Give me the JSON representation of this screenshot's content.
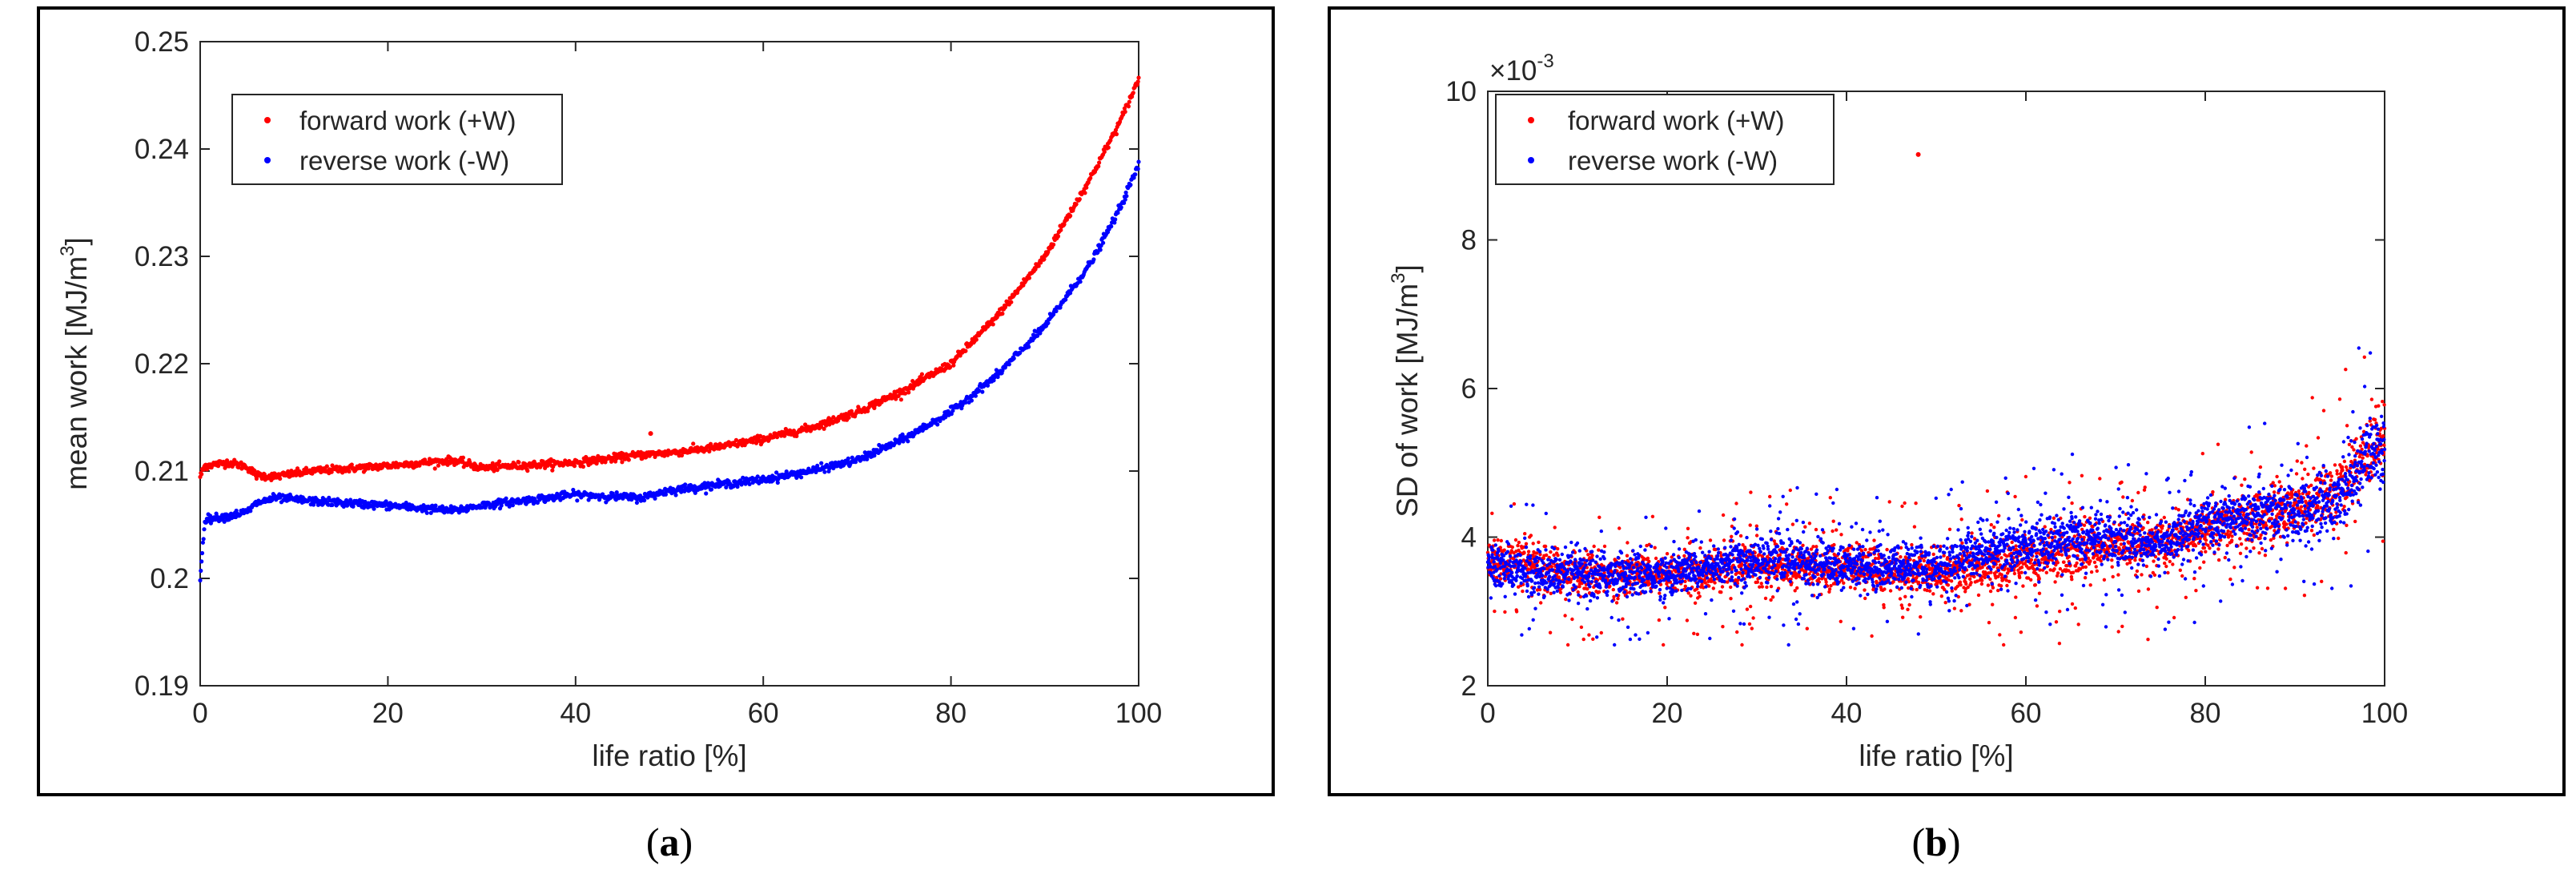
{
  "chart_data": [
    {
      "type": "scatter",
      "panel_label": "a",
      "xlabel": "life ratio [%]",
      "ylabel": "mean work [MJ/m",
      "ylabel_sup": "3",
      "ylabel_end": "]",
      "xlim": [
        0,
        100
      ],
      "ylim": [
        0.19,
        0.25
      ],
      "xticks": [
        0,
        20,
        40,
        60,
        80,
        100
      ],
      "yticks": [
        0.19,
        0.2,
        0.21,
        0.22,
        0.23,
        0.24,
        0.25
      ],
      "ytick_labels": [
        "0.19",
        "0.2",
        "0.21",
        "0.22",
        "0.23",
        "0.24",
        "0.25"
      ],
      "legend": {
        "placement": "top-left",
        "entries": [
          "forward work (+W)",
          "reverse work (-W)"
        ]
      },
      "series": [
        {
          "name": "forward work (+W)",
          "color": "#ff0000",
          "x": [
            0,
            0.5,
            3,
            5,
            6,
            8,
            12,
            20,
            27,
            30,
            40,
            47,
            50,
            55,
            60,
            65,
            70,
            75,
            80,
            85,
            90,
            95,
            98,
            100
          ],
          "values": [
            0.2095,
            0.2105,
            0.2108,
            0.2104,
            0.2096,
            0.2095,
            0.21,
            0.2105,
            0.211,
            0.2103,
            0.2108,
            0.2115,
            0.2117,
            0.2122,
            0.213,
            0.214,
            0.2155,
            0.2175,
            0.22,
            0.2245,
            0.23,
            0.2375,
            0.2425,
            0.2465
          ]
        },
        {
          "name": "reverse work (-W)",
          "color": "#0000ff",
          "x": [
            0,
            0.5,
            3,
            5,
            6,
            8,
            12,
            20,
            27,
            30,
            40,
            47,
            50,
            55,
            60,
            65,
            70,
            75,
            80,
            85,
            90,
            95,
            98,
            100
          ],
          "values": [
            0.2,
            0.2055,
            0.2058,
            0.2062,
            0.207,
            0.2075,
            0.2072,
            0.2068,
            0.2063,
            0.2068,
            0.2078,
            0.2075,
            0.2082,
            0.2087,
            0.2092,
            0.21,
            0.211,
            0.213,
            0.2155,
            0.219,
            0.2235,
            0.2295,
            0.2345,
            0.2385
          ]
        }
      ],
      "outliers": [
        {
          "series": "forward work (+W)",
          "x": 48,
          "y": 0.2135
        }
      ]
    },
    {
      "type": "scatter",
      "panel_label": "b",
      "xlabel": "life ratio [%]",
      "ylabel": "SD of work [MJ/m",
      "ylabel_sup": "3",
      "ylabel_end": "]",
      "multiplier": "×10",
      "multiplier_exp": "-3",
      "xlim": [
        0,
        100
      ],
      "ylim": [
        2,
        10
      ],
      "xticks": [
        0,
        20,
        40,
        60,
        80,
        100
      ],
      "yticks": [
        2,
        4,
        6,
        8,
        10
      ],
      "ytick_labels": [
        "2",
        "4",
        "6",
        "8",
        "10"
      ],
      "legend": {
        "placement": "top-left",
        "entries": [
          "forward work (+W)",
          "reverse work (-W)"
        ]
      },
      "series": [
        {
          "name": "forward work (+W)",
          "color": "#ff0000",
          "x": [
            0,
            5,
            10,
            20,
            30,
            40,
            50,
            55,
            60,
            65,
            70,
            75,
            80,
            85,
            90,
            95,
            98,
            100
          ],
          "values": [
            3.7,
            3.6,
            3.5,
            3.5,
            3.6,
            3.6,
            3.5,
            3.6,
            3.7,
            3.8,
            3.9,
            3.9,
            4.1,
            4.2,
            4.4,
            4.6,
            5.2,
            5.3
          ],
          "spread": [
            0.3,
            0.3,
            0.3,
            0.3,
            0.3,
            0.3,
            0.3,
            0.35,
            0.35,
            0.35,
            0.35,
            0.35,
            0.35,
            0.4,
            0.4,
            0.45,
            0.5,
            0.5
          ]
        },
        {
          "name": "reverse work (-W)",
          "color": "#0000ff",
          "x": [
            0,
            5,
            10,
            20,
            30,
            40,
            50,
            55,
            60,
            65,
            70,
            75,
            80,
            85,
            90,
            95,
            98,
            100
          ],
          "values": [
            3.6,
            3.5,
            3.5,
            3.5,
            3.7,
            3.6,
            3.6,
            3.8,
            3.9,
            4.0,
            4.0,
            3.9,
            4.2,
            4.3,
            4.3,
            4.5,
            5.1,
            5.2
          ],
          "spread": [
            0.3,
            0.3,
            0.3,
            0.3,
            0.3,
            0.3,
            0.3,
            0.35,
            0.35,
            0.35,
            0.35,
            0.35,
            0.35,
            0.4,
            0.4,
            0.45,
            0.5,
            0.5
          ]
        }
      ],
      "outliers": [
        {
          "series": "forward work (+W)",
          "x": 48,
          "y": 9.15
        }
      ]
    }
  ]
}
